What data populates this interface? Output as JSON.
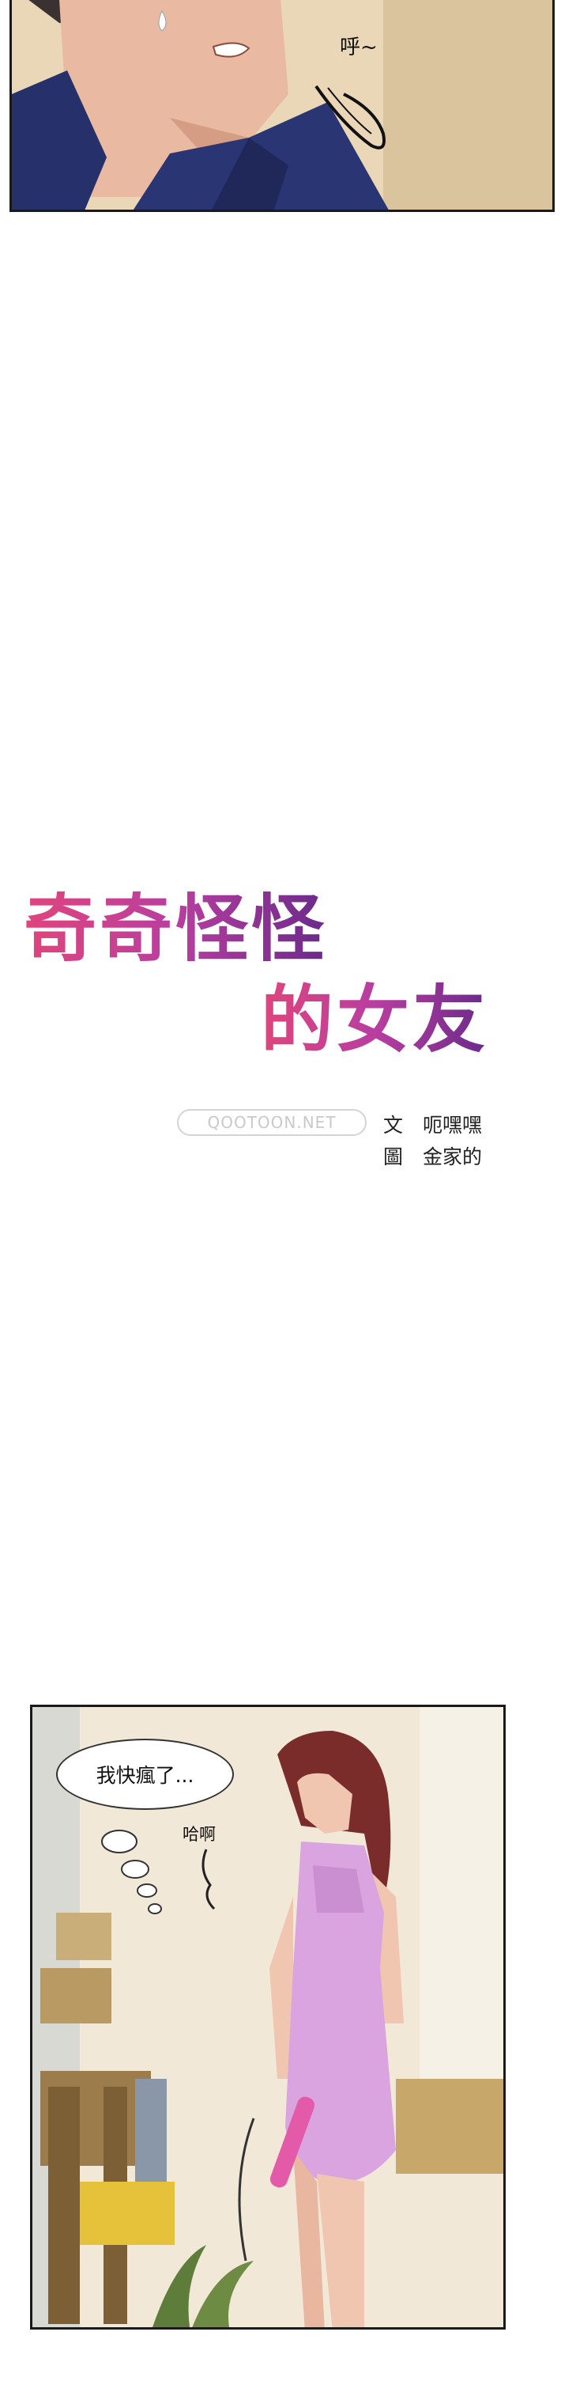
{
  "panel_1": {
    "sfx": "呼~"
  },
  "title": {
    "line_1": "奇奇怪怪",
    "line_2": "的女友"
  },
  "watermark": "QOOTOON.NET",
  "credits": {
    "story_label": "文",
    "story_name": "呃嘿嘿",
    "art_label": "圖",
    "art_name": "金家的"
  },
  "panel_2": {
    "speech": "我快瘋了...",
    "sfx": "哈啊"
  },
  "colors": {
    "title_pink": "#e0457c",
    "title_purple": "#6a2a8a",
    "panel_border": "#1a1a1a"
  }
}
